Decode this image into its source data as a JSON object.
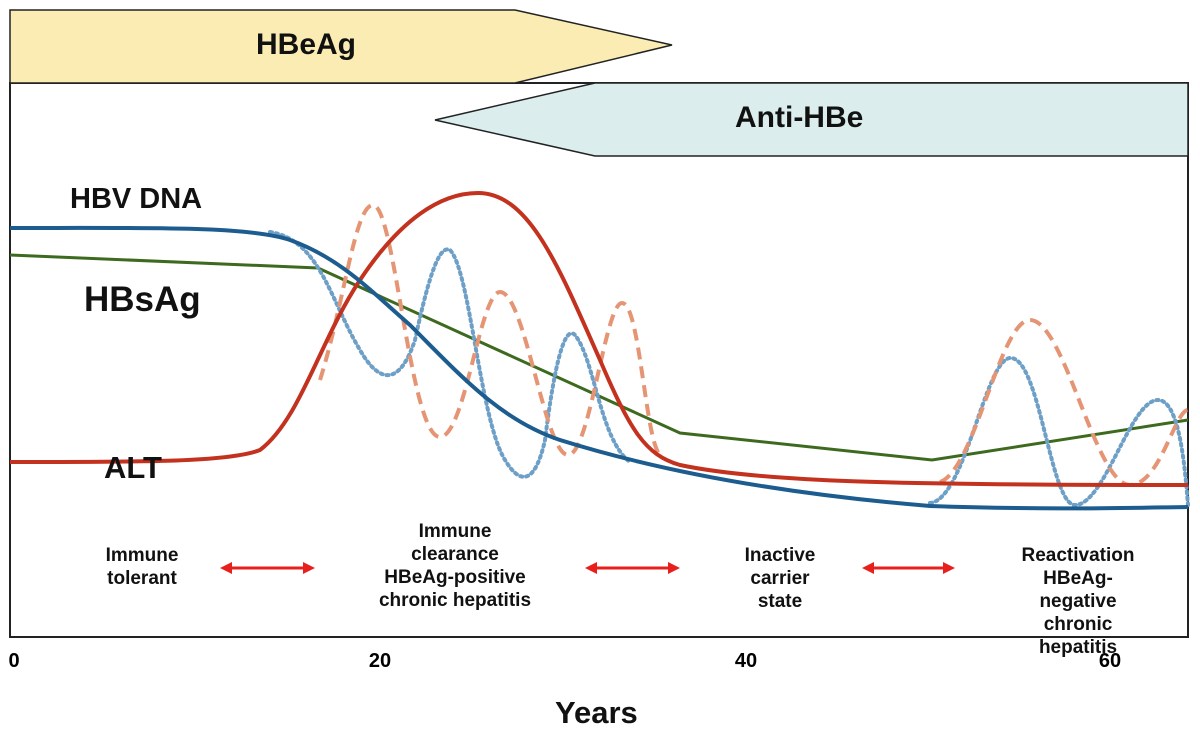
{
  "markers": {
    "hbeag": {
      "label": "HBeAg",
      "color": "#fbecb4"
    },
    "anti_hbe": {
      "label": "Anti-HBe",
      "color": "#dbeeed"
    }
  },
  "series_labels": {
    "hbv_dna": "HBV DNA",
    "hbsag": "HBsAg",
    "alt": "ALT"
  },
  "colors": {
    "hbv_dna": "#1d5c8f",
    "hbv_dna_fluct": "#6e9fc6",
    "alt": "#c3321f",
    "alt_fluct": "#e59474",
    "hbsag": "#3e6a1f",
    "phase_arrow": "#e8201c"
  },
  "phases": [
    {
      "lines": [
        "Immune",
        "tolerant"
      ]
    },
    {
      "lines": [
        "Immune",
        "clearance",
        "HBeAg-positive",
        "chronic hepatitis"
      ]
    },
    {
      "lines": [
        "Inactive",
        "carrier",
        "state"
      ]
    },
    {
      "lines": [
        "Reactivation",
        "HBeAg-negative",
        "chronic hepatitis"
      ]
    }
  ],
  "x_axis": {
    "label": "Years",
    "ticks": [
      "0",
      "20",
      "40",
      "60"
    ]
  }
}
